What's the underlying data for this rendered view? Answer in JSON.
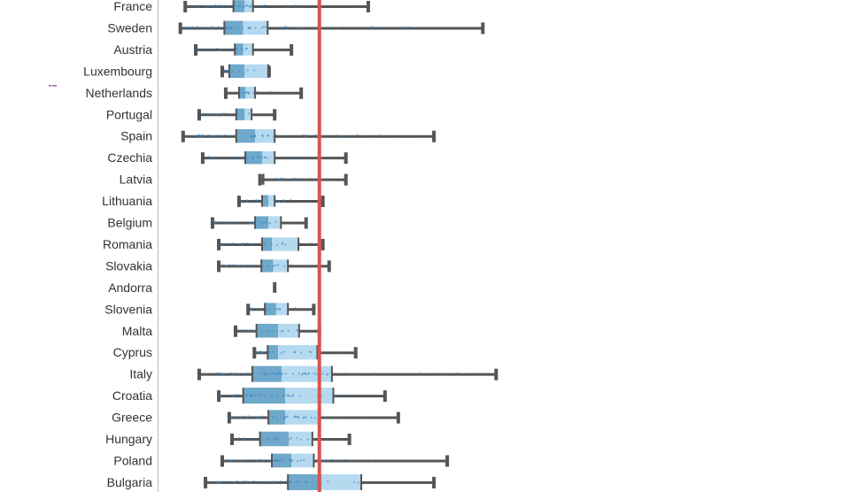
{
  "chart_data": {
    "type": "boxplot",
    "title": "",
    "xlabel": "",
    "ylabel": "",
    "xlim": [
      0,
      100
    ],
    "orientation": "horizontal",
    "grid": false,
    "reference_line": {
      "value": 22.9,
      "color": "#d9534f"
    },
    "colors": {
      "lower_box": "#6ea8cb",
      "upper_box": "#b5daf0",
      "whisker": "#555555",
      "points": "#2f7fbf",
      "axis_line": "#bbbbbb"
    },
    "categories": [
      "France",
      "Sweden",
      "Austria",
      "Luxembourg",
      "Netherlands",
      "Portugal",
      "Spain",
      "Czechia",
      "Latvia",
      "Lithuania",
      "Belgium",
      "Romania",
      "Slovakia",
      "Andorra",
      "Slovenia",
      "Malta",
      "Cyprus",
      "Italy",
      "Croatia",
      "Greece",
      "Hungary",
      "Poland",
      "Bulgaria"
    ],
    "series": [
      {
        "name": "France",
        "min": 3.7,
        "q1": 10.6,
        "median": 12.2,
        "q3": 13.4,
        "max": 29.9
      },
      {
        "name": "Sweden",
        "min": 3.0,
        "q1": 9.3,
        "median": 12.0,
        "q3": 15.5,
        "max": 46.3
      },
      {
        "name": "Austria",
        "min": 5.2,
        "q1": 10.8,
        "median": 12.0,
        "q3": 13.4,
        "max": 18.9
      },
      {
        "name": "Luxembourg",
        "min": 9.0,
        "q1": 10.0,
        "median": 12.2,
        "q3": 15.6,
        "max": 15.7
      },
      {
        "name": "Netherlands",
        "min": 9.5,
        "q1": 11.4,
        "median": 12.3,
        "q3": 13.7,
        "max": 20.3
      },
      {
        "name": "Portugal",
        "min": 5.7,
        "q1": 11.0,
        "median": 12.2,
        "q3": 13.2,
        "max": 16.5
      },
      {
        "name": "Spain",
        "min": 3.4,
        "q1": 11.0,
        "median": 13.7,
        "q3": 16.5,
        "max": 39.3
      },
      {
        "name": "Czechia",
        "min": 6.2,
        "q1": 12.3,
        "median": 14.7,
        "q3": 16.5,
        "max": 26.7
      },
      {
        "name": "Latvia",
        "min": 14.4,
        "q1": 14.8,
        "median": 14.9,
        "q3": 14.9,
        "max": 26.7
      },
      {
        "name": "Lithuania",
        "min": 11.4,
        "q1": 14.7,
        "median": 15.6,
        "q3": 16.5,
        "max": 23.4
      },
      {
        "name": "Belgium",
        "min": 7.6,
        "q1": 13.7,
        "median": 15.6,
        "q3": 17.4,
        "max": 21.0
      },
      {
        "name": "Romania",
        "min": 8.5,
        "q1": 14.7,
        "median": 16.1,
        "q3": 19.9,
        "max": 23.4
      },
      {
        "name": "Slovakia",
        "min": 8.5,
        "q1": 14.6,
        "median": 16.3,
        "q3": 18.4,
        "max": 24.3
      },
      {
        "name": "Andorra",
        "min": 16.5,
        "q1": 16.5,
        "median": 16.5,
        "q3": 16.5,
        "max": 16.5
      },
      {
        "name": "Slovenia",
        "min": 12.7,
        "q1": 15.1,
        "median": 16.7,
        "q3": 18.4,
        "max": 22.1
      },
      {
        "name": "Malta",
        "min": 10.9,
        "q1": 13.9,
        "median": 17.0,
        "q3": 20.0,
        "max": 22.9
      },
      {
        "name": "Cyprus",
        "min": 13.6,
        "q1": 15.5,
        "median": 17.0,
        "q3": 22.6,
        "max": 28.1
      },
      {
        "name": "Italy",
        "min": 5.7,
        "q1": 13.3,
        "median": 17.5,
        "q3": 24.7,
        "max": 48.2
      },
      {
        "name": "Croatia",
        "min": 8.5,
        "q1": 12.0,
        "median": 18.0,
        "q3": 24.9,
        "max": 32.3
      },
      {
        "name": "Greece",
        "min": 10.0,
        "q1": 15.6,
        "median": 18.0,
        "q3": 22.9,
        "max": 34.2
      },
      {
        "name": "Hungary",
        "min": 10.4,
        "q1": 14.4,
        "median": 18.5,
        "q3": 21.9,
        "max": 27.2
      },
      {
        "name": "Poland",
        "min": 9.0,
        "q1": 16.1,
        "median": 18.9,
        "q3": 22.1,
        "max": 41.2
      },
      {
        "name": "Bulgaria",
        "min": 6.6,
        "q1": 18.4,
        "median": 23.2,
        "q3": 28.9,
        "max": 39.3
      }
    ]
  }
}
